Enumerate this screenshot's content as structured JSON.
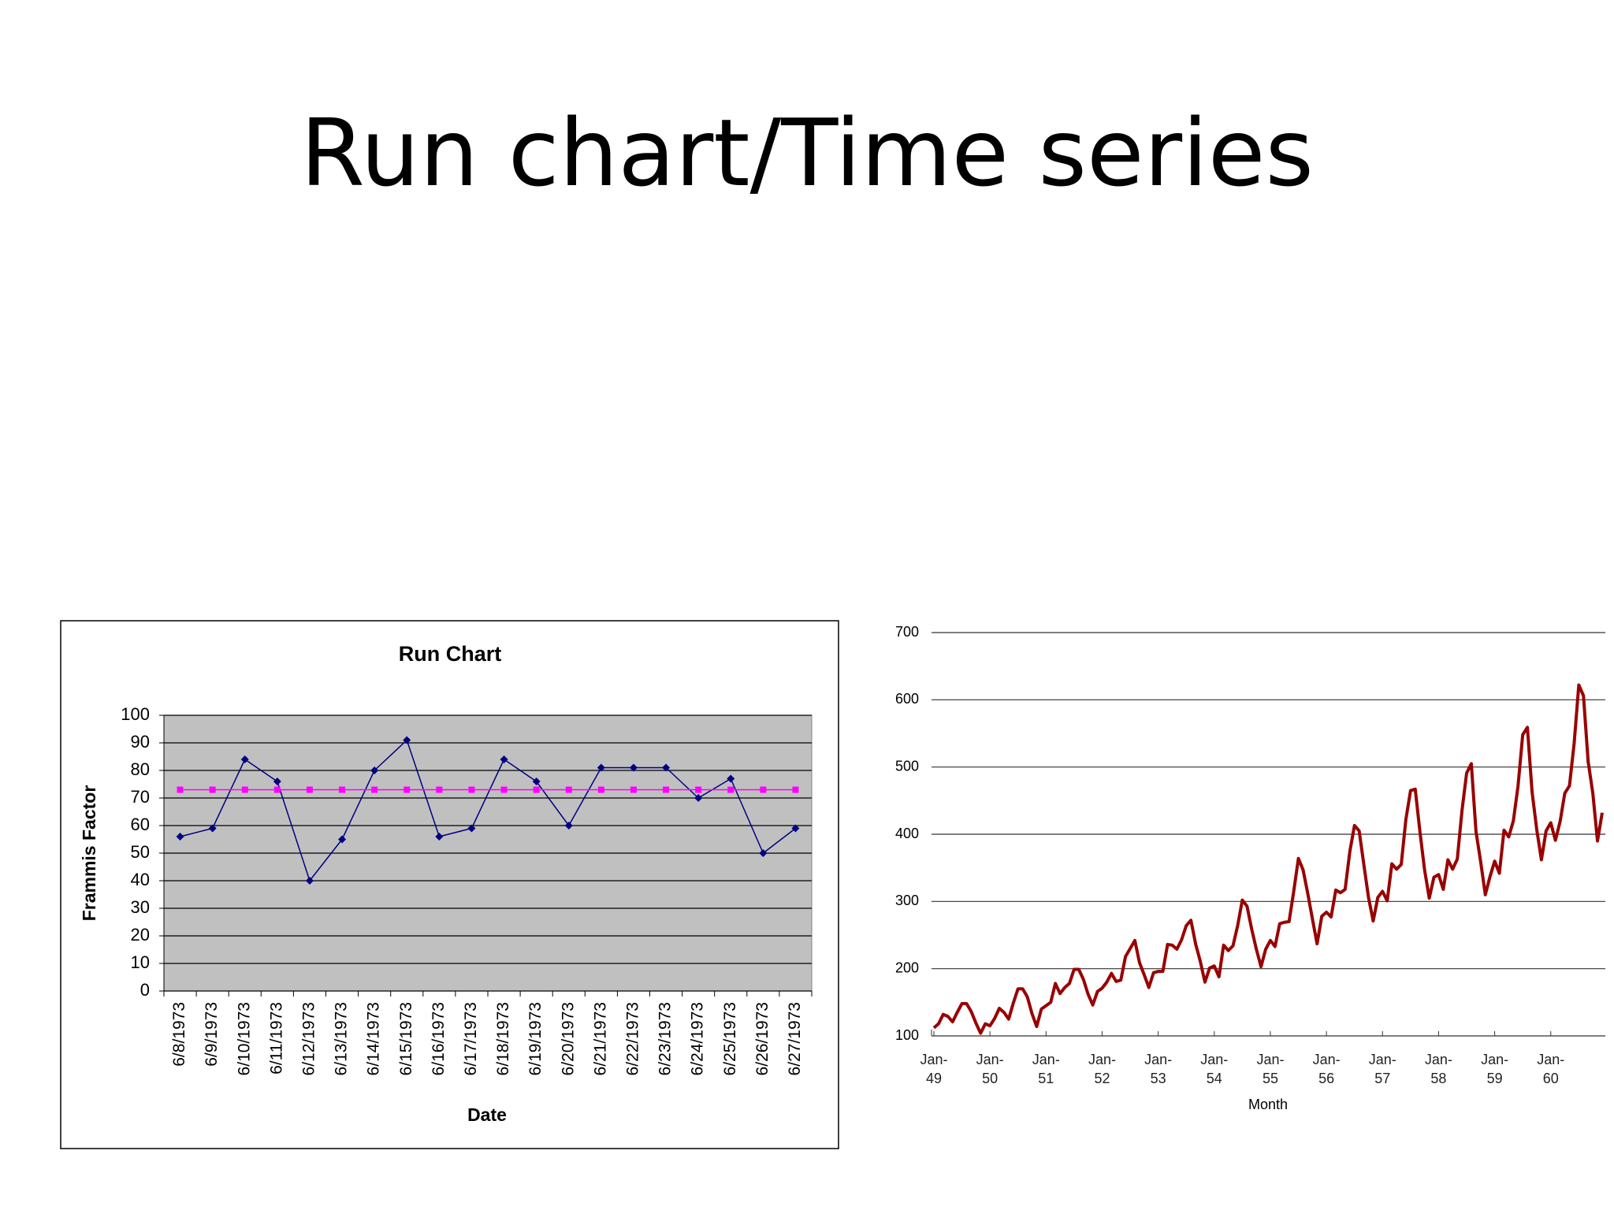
{
  "title": "Run chart/Time series",
  "chart_data": [
    {
      "type": "line",
      "title": "Run Chart",
      "x_label": "Date",
      "y_label": "Frammis Factor",
      "categories": [
        "6/8/1973",
        "6/9/1973",
        "6/10/1973",
        "6/11/1973",
        "6/12/1973",
        "6/13/1973",
        "6/14/1973",
        "6/15/1973",
        "6/16/1973",
        "6/17/1973",
        "6/18/1973",
        "6/19/1973",
        "6/20/1973",
        "6/21/1973",
        "6/22/1973",
        "6/23/1973",
        "6/24/1973",
        "6/25/1973",
        "6/26/1973",
        "6/27/1973"
      ],
      "series": [
        {
          "color": "#000080",
          "marker": "diamond",
          "values": [
            56,
            59,
            84,
            76,
            40,
            55,
            80,
            91,
            56,
            59,
            84,
            76,
            60,
            81,
            81,
            81,
            70,
            77,
            50,
            59
          ]
        },
        {
          "color": "#ff00ff",
          "marker": "square",
          "values": [
            73,
            73,
            73,
            73,
            73,
            73,
            73,
            73,
            73,
            73,
            73,
            73,
            73,
            73,
            73,
            73,
            73,
            73,
            73,
            73
          ]
        }
      ],
      "ylim": [
        0,
        100
      ],
      "yticks": [
        0,
        10,
        20,
        30,
        40,
        50,
        60,
        70,
        80,
        90,
        100
      ],
      "grid": true,
      "plot_background": "#c0c0c0"
    },
    {
      "type": "line",
      "x_label": "Month",
      "categories": [
        "Jan-49",
        null,
        null,
        null,
        null,
        null,
        null,
        null,
        null,
        null,
        null,
        null,
        "Jan-50",
        null,
        null,
        null,
        null,
        null,
        null,
        null,
        null,
        null,
        null,
        null,
        "Jan-51",
        null,
        null,
        null,
        null,
        null,
        null,
        null,
        null,
        null,
        null,
        null,
        "Jan-52",
        null,
        null,
        null,
        null,
        null,
        null,
        null,
        null,
        null,
        null,
        null,
        "Jan-53",
        null,
        null,
        null,
        null,
        null,
        null,
        null,
        null,
        null,
        null,
        null,
        "Jan-54",
        null,
        null,
        null,
        null,
        null,
        null,
        null,
        null,
        null,
        null,
        null,
        "Jan-55",
        null,
        null,
        null,
        null,
        null,
        null,
        null,
        null,
        null,
        null,
        null,
        "Jan-56",
        null,
        null,
        null,
        null,
        null,
        null,
        null,
        null,
        null,
        null,
        null,
        "Jan-57",
        null,
        null,
        null,
        null,
        null,
        null,
        null,
        null,
        null,
        null,
        null,
        "Jan-58",
        null,
        null,
        null,
        null,
        null,
        null,
        null,
        null,
        null,
        null,
        null,
        "Jan-59",
        null,
        null,
        null,
        null,
        null,
        null,
        null,
        null,
        null,
        null,
        null,
        "Jan-60",
        null,
        null,
        null,
        null,
        null,
        null,
        null,
        null,
        null,
        null,
        null
      ],
      "series": [
        {
          "color": "#990000",
          "values": [
            112,
            118,
            132,
            129,
            121,
            135,
            148,
            148,
            136,
            119,
            104,
            118,
            115,
            126,
            141,
            135,
            125,
            149,
            170,
            170,
            158,
            133,
            114,
            140,
            145,
            150,
            178,
            163,
            172,
            178,
            199,
            199,
            184,
            162,
            146,
            166,
            171,
            180,
            193,
            181,
            183,
            218,
            230,
            242,
            209,
            191,
            172,
            194,
            196,
            196,
            236,
            235,
            229,
            243,
            264,
            272,
            237,
            211,
            180,
            201,
            204,
            188,
            235,
            227,
            234,
            264,
            302,
            293,
            259,
            229,
            203,
            229,
            242,
            233,
            267,
            269,
            270,
            315,
            364,
            347,
            312,
            274,
            237,
            278,
            284,
            277,
            317,
            313,
            318,
            374,
            413,
            405,
            355,
            306,
            271,
            306,
            315,
            301,
            356,
            348,
            355,
            422,
            465,
            467,
            404,
            347,
            305,
            336,
            340,
            318,
            362,
            348,
            363,
            435,
            491,
            505,
            404,
            359,
            310,
            337,
            360,
            342,
            406,
            396,
            420,
            472,
            548,
            559,
            463,
            407,
            362,
            405,
            417,
            391,
            419,
            461,
            472,
            535,
            622,
            606,
            508,
            461,
            390,
            432
          ]
        }
      ],
      "ylim": [
        100,
        700
      ],
      "yticks": [
        100,
        200,
        300,
        400,
        500,
        600,
        700
      ],
      "grid": true
    }
  ]
}
